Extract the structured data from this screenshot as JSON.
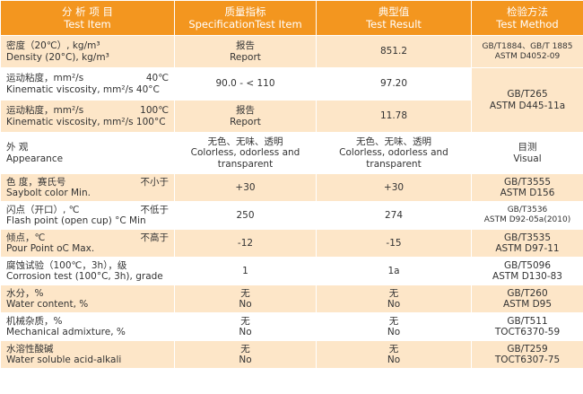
{
  "header": {
    "item_cn": "分 析 项 目",
    "item_en": "Test Item",
    "spec_cn": "质量指标",
    "spec_en": "SpecificationTest Item",
    "result_cn": "典型值",
    "result_en": "Test Result",
    "method_cn": "检验方法",
    "method_en": "Test Method"
  },
  "rows": [
    {
      "item_l1": "密度（20℃）, kg/m³",
      "item_l2": "Density (20°C), kg/m³",
      "spec_l1": "报告",
      "spec_l2": "Report",
      "result_l1": "851.2",
      "method_l1": "GB/T1884、GB/T 1885",
      "method_l2": "ASTM D4052-09"
    },
    {
      "item_l1": "运动粘度，mm²/s",
      "item_l1_right": "40℃",
      "item_l2": "Kinematic viscosity, mm²/s 40°C",
      "spec_l1": "90.0 - < 110",
      "result_l1": "97.20",
      "method_l1": "GB/T265",
      "method_l2": "ASTM D445-11a"
    },
    {
      "item_l1": "运动粘度，mm²/s",
      "item_l1_right": "100℃",
      "item_l2": "Kinematic viscosity, mm²/s 100°C",
      "spec_l1": "报告",
      "spec_l2": "Report",
      "result_l1": "11.78"
    },
    {
      "item_l1": "外  观",
      "item_l2": "Appearance",
      "spec_l1": "无色、无味、透明",
      "spec_l2": "Colorless, odorless and",
      "spec_l3": "transparent",
      "result_l1": "无色、无味、透明",
      "result_l2": "Colorless, odorless and",
      "result_l3": "transparent",
      "method_l1": "目测",
      "method_l2": "Visual"
    },
    {
      "item_l1": "色  度，赛氏号",
      "item_l1_right": "不小于",
      "item_l2": "Saybolt color Min.",
      "spec_l1": "+30",
      "result_l1": "+30",
      "method_l1": "GB/T3555",
      "method_l2": "ASTM D156"
    },
    {
      "item_l1": "闪点（开口）, ℃",
      "item_l1_right": "不低于",
      "item_l2": "Flash point (open cup) °C Min",
      "spec_l1": "250",
      "result_l1": "274",
      "method_l1": "GB/T3536",
      "method_l2": "ASTM D92-05a(2010)"
    },
    {
      "item_l1": "倾点，℃",
      "item_l1_right": "不高于",
      "item_l2": "Pour Point oC Max.",
      "spec_l1": "-12",
      "result_l1": "-15",
      "method_l1": "GB/T3535",
      "method_l2": "ASTM D97-11"
    },
    {
      "item_l1": "腐蚀试验（100℃，3h），级",
      "item_l2": "Corrosion test (100°C, 3h), grade",
      "spec_l1": "1",
      "result_l1": "1a",
      "method_l1": "GB/T5096",
      "method_l2": "ASTM D130-83"
    },
    {
      "item_l1": "水分，%",
      "item_l2": "Water content, %",
      "spec_l1": "无",
      "spec_l2": "No",
      "result_l1": "无",
      "result_l2": "No",
      "method_l1": "GB/T260",
      "method_l2": "ASTM D95"
    },
    {
      "item_l1": "机械杂质，%",
      "item_l2": "Mechanical admixture, %",
      "spec_l1": "无",
      "spec_l2": "No",
      "result_l1": "无",
      "result_l2": "No",
      "method_l1": "GB/T511",
      "method_l2": "TOCT6370-59"
    },
    {
      "item_l1": "水溶性酸碱",
      "item_l2": "Water soluble acid-alkali",
      "spec_l1": "无",
      "spec_l2": "No",
      "result_l1": "无",
      "result_l2": "No",
      "method_l1": "GB/T259",
      "method_l2": "TOCT6307-75"
    }
  ],
  "colors": {
    "header_bg": "#f3961f",
    "stripe_bg": "#fde6c8",
    "text": "#333333"
  }
}
